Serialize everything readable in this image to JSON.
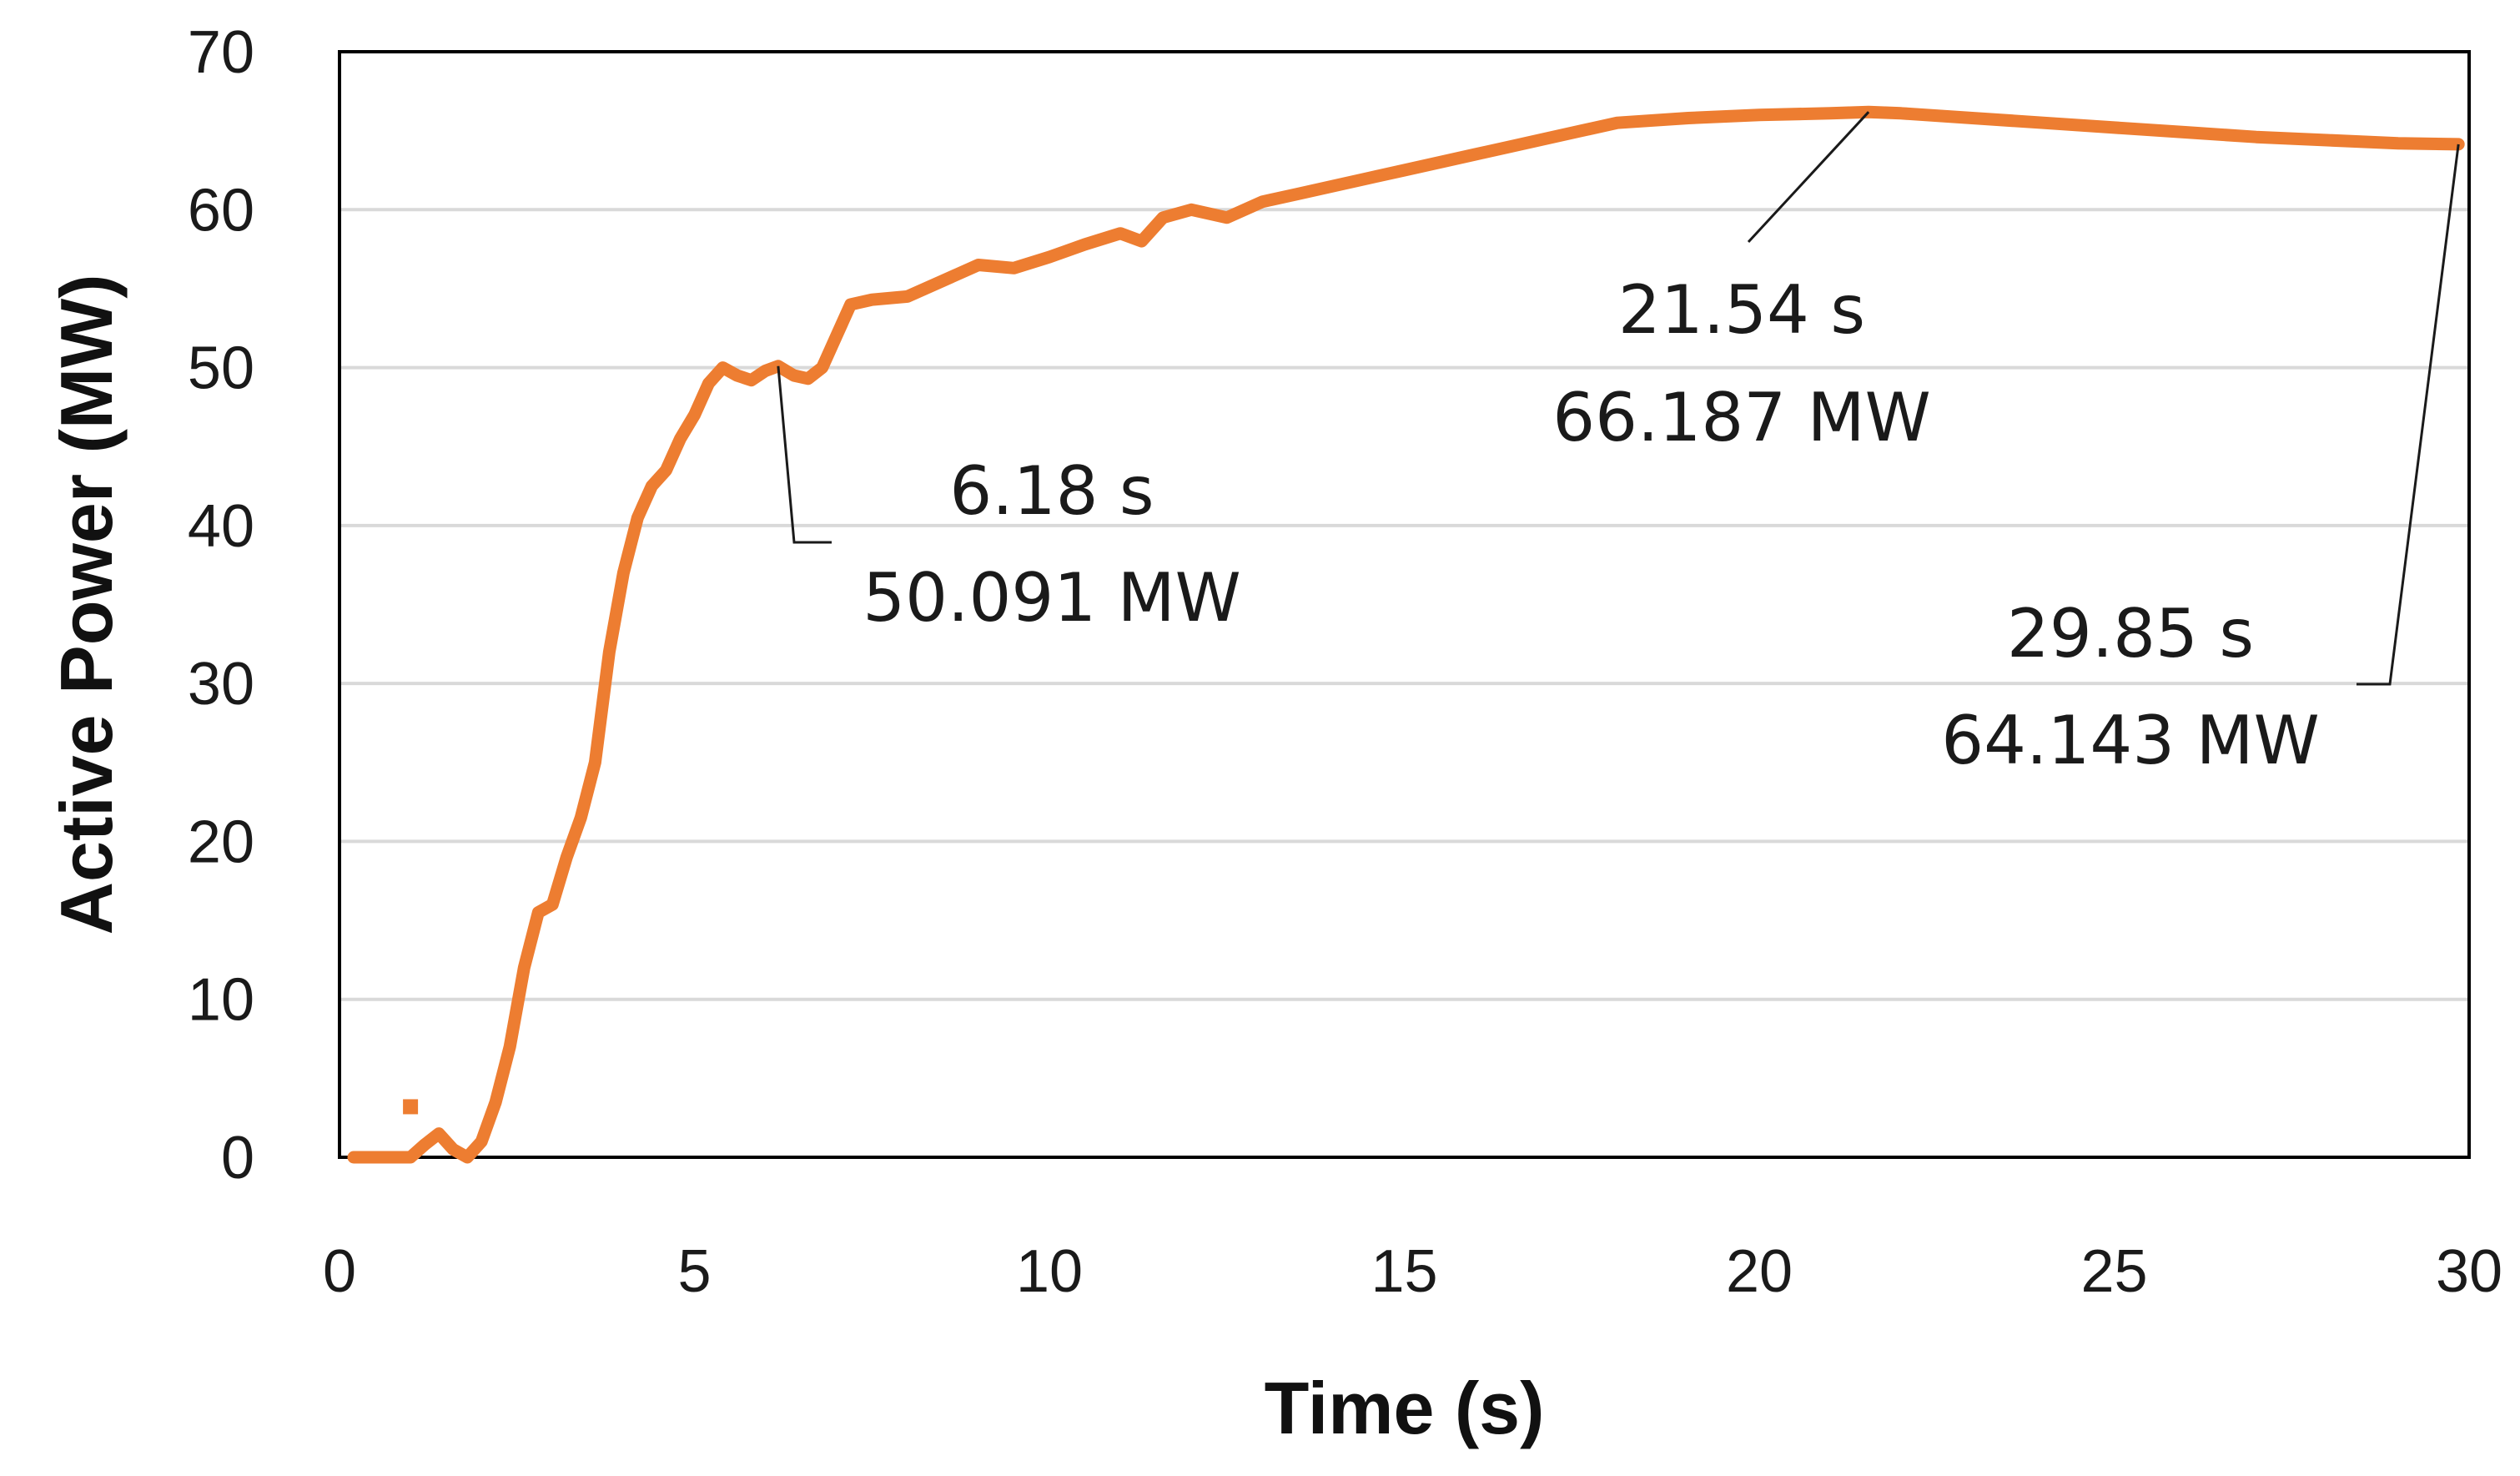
{
  "chart_data": {
    "type": "line",
    "title": "",
    "xlabel": "Time (s)",
    "ylabel": "Active Power (MW)",
    "xlim": [
      0,
      30
    ],
    "ylim": [
      0,
      70
    ],
    "x_ticks": [
      0,
      5,
      10,
      15,
      20,
      25,
      30
    ],
    "y_ticks": [
      0,
      10,
      20,
      30,
      40,
      50,
      60,
      70
    ],
    "grid": "horizontal",
    "legend": "none",
    "series": [
      {
        "color": "#ED7D31",
        "x": [
          0.2,
          0.5,
          0.8,
          1.0,
          1.2,
          1.4,
          1.6,
          1.8,
          2.0,
          2.2,
          2.4,
          2.6,
          2.8,
          3.0,
          3.2,
          3.4,
          3.6,
          3.8,
          4.0,
          4.2,
          4.4,
          4.6,
          4.8,
          5.0,
          5.2,
          5.4,
          5.6,
          5.8,
          6.0,
          6.18,
          6.4,
          6.6,
          6.8,
          7.0,
          7.2,
          7.5,
          8.0,
          8.5,
          9.0,
          9.5,
          10.0,
          10.5,
          11.0,
          11.3,
          11.6,
          12.0,
          12.5,
          13.0,
          13.5,
          14.0,
          14.5,
          15.0,
          15.5,
          16.0,
          16.5,
          17.0,
          17.5,
          18.0,
          19.0,
          20.0,
          21.0,
          21.54,
          22.0,
          23.0,
          24.0,
          25.0,
          26.0,
          27.0,
          28.0,
          29.0,
          29.85
        ],
        "y": [
          0,
          0,
          0,
          0,
          0.8,
          1.5,
          0.5,
          0,
          1.0,
          3.5,
          7.0,
          12.0,
          15.5,
          16.0,
          19.0,
          21.5,
          25.0,
          32.0,
          37.0,
          40.5,
          42.5,
          43.5,
          45.5,
          47.0,
          49.0,
          50.0,
          49.5,
          49.2,
          49.8,
          50.091,
          49.5,
          49.3,
          50.0,
          52.0,
          54.0,
          54.3,
          54.5,
          55.5,
          56.5,
          56.3,
          57.0,
          57.8,
          58.5,
          58.0,
          59.5,
          60.0,
          59.5,
          60.5,
          61.0,
          61.5,
          62.0,
          62.5,
          63.0,
          63.5,
          64.0,
          64.5,
          65.0,
          65.5,
          65.8,
          66.0,
          66.1,
          66.187,
          66.1,
          65.8,
          65.5,
          65.2,
          64.9,
          64.6,
          64.4,
          64.2,
          64.143
        ]
      }
    ],
    "stray_points": [
      {
        "x": 1.0,
        "y": 3.2
      }
    ],
    "annotations": [
      {
        "x": 6.18,
        "y": 50.091,
        "time_label": "6.18 s",
        "value_label": "50.091 MW"
      },
      {
        "x": 21.54,
        "y": 66.187,
        "time_label": "21.54 s",
        "value_label": "66.187 MW"
      },
      {
        "x": 29.85,
        "y": 64.143,
        "time_label": "29.85 s",
        "value_label": "64.143 MW"
      }
    ]
  }
}
